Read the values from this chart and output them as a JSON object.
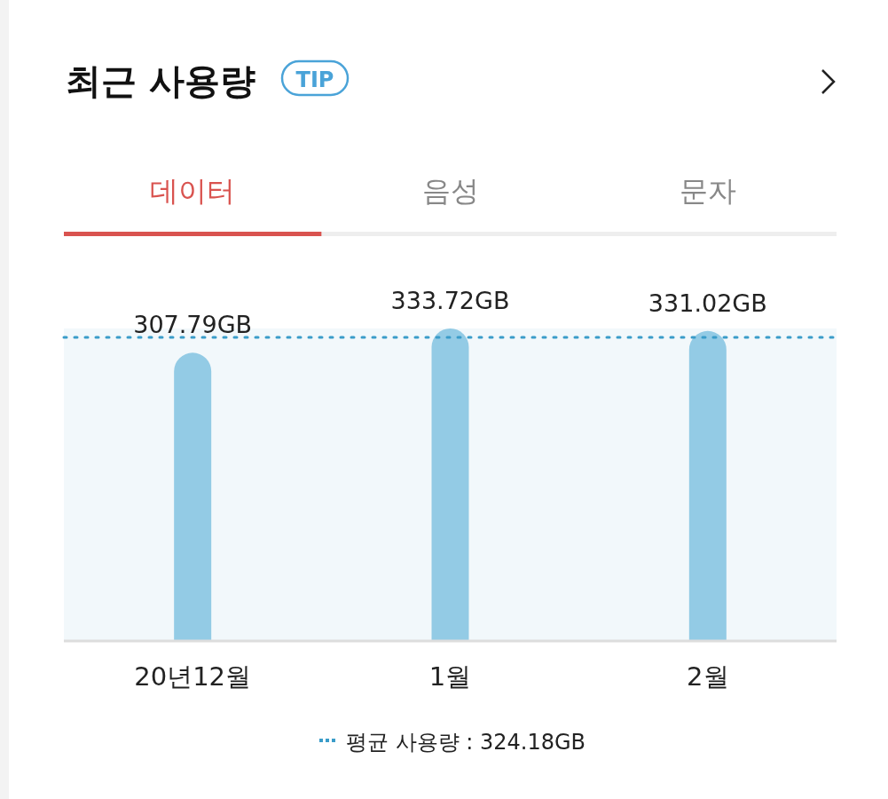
{
  "chart_data": {
    "type": "bar",
    "title": "최근 사용량",
    "annotations": [
      "TIP",
      "데이터",
      "음성",
      "문자"
    ],
    "categories": [
      "20년12월",
      "1월",
      "2월"
    ],
    "values": [
      307.79,
      333.72,
      331.02
    ],
    "value_labels": [
      "307.79GB",
      "333.72GB",
      "331.02GB"
    ],
    "color": "#93cbe5",
    "ref_lines": [
      {
        "axis": "y",
        "value": 324.18,
        "label": "평균 사용량 : 324.18GB",
        "color": "#3a9cc9",
        "line_style": "dotted"
      }
    ]
  }
}
